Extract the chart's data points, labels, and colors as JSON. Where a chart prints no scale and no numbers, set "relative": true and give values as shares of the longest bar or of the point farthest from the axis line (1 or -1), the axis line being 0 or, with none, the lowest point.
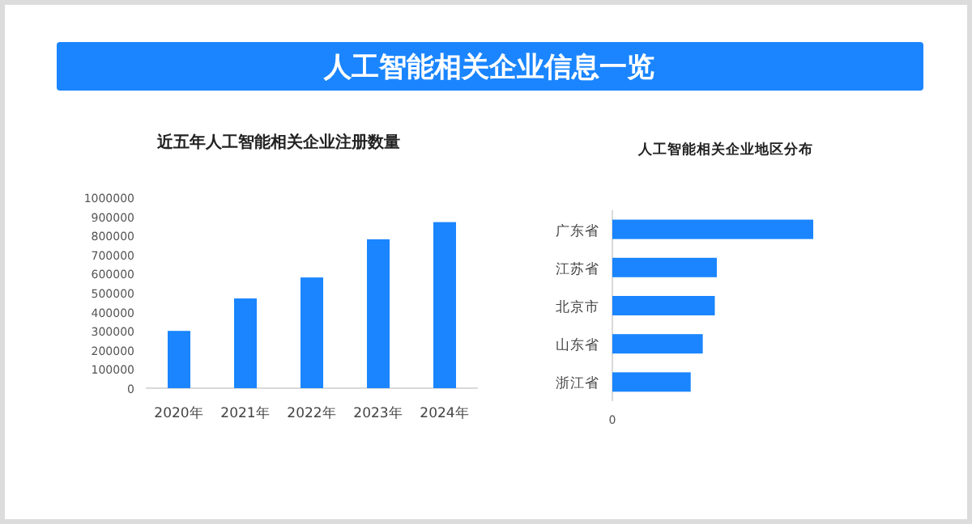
{
  "chart_data": [
    {
      "type": "other",
      "title": "人工智能相关企业信息一览"
    },
    {
      "type": "bar",
      "title": "近五年人工智能相关企业注册数量",
      "categories": [
        "2020年",
        "2021年",
        "2022年",
        "2023年",
        "2024年"
      ],
      "values": [
        300000,
        470000,
        580000,
        780000,
        870000
      ],
      "color": "#1a85ff",
      "ylim": [
        0,
        1000000
      ],
      "yticks": [
        0,
        100000,
        200000,
        300000,
        400000,
        500000,
        600000,
        700000,
        800000,
        900000,
        1000000
      ]
    },
    {
      "type": "bar",
      "orientation": "horizontal",
      "relative": true,
      "title": "人工智能相关企业地区分布",
      "categories": [
        "广东省",
        "江苏省",
        "北京市",
        "山东省",
        "浙江省"
      ],
      "values": [
        1,
        0.52,
        0.51,
        0.45,
        0.39
      ],
      "color": "#1a85ff",
      "annotations": [
        "0"
      ]
    }
  ]
}
